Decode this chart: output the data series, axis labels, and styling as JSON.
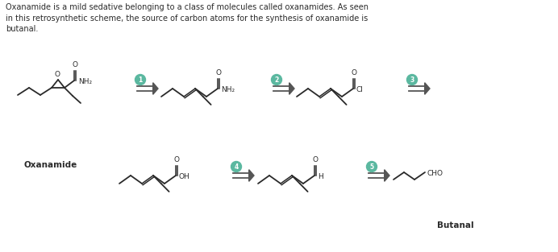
{
  "title_text": "Oxanamide is a mild sedative belonging to a class of molecules called oxanamides. As seen\nin this retrosynthetic scheme, the source of carbon atoms for the synthesis of oxanamide is\nbutanal.",
  "background_color": "#ffffff",
  "text_color": "#2a2a2a",
  "arrow_color": "#555555",
  "circle_color": "#5bb8a0",
  "bond_color": "#2a2a2a",
  "label_oxanamide": "Oxanamide",
  "label_butanal": "Butanal"
}
